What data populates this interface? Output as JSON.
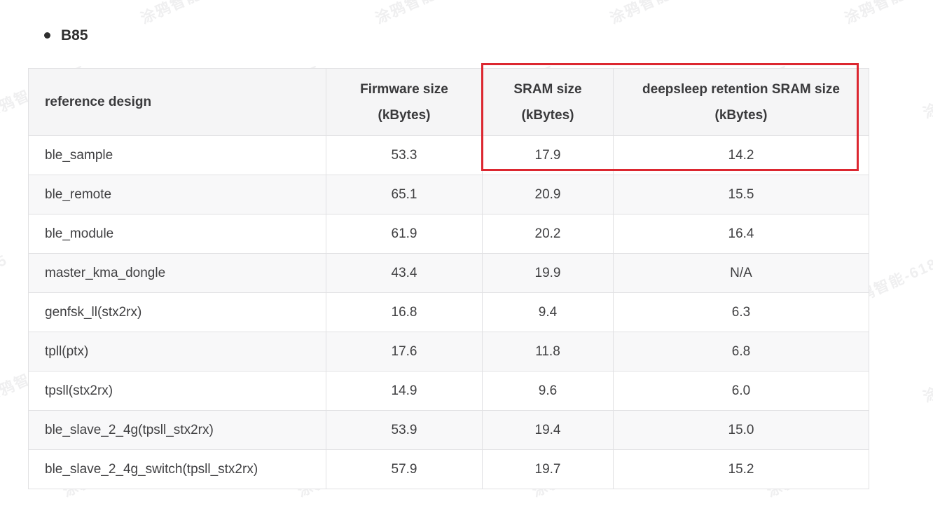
{
  "heading": {
    "title": "B85"
  },
  "table": {
    "headers": [
      "reference design",
      "Firmware size (kBytes)",
      "SRAM size (kBytes)",
      "deepsleep retention SRAM size (kBytes)"
    ],
    "rows": [
      [
        "ble_sample",
        "53.3",
        "17.9",
        "14.2"
      ],
      [
        "ble_remote",
        "65.1",
        "20.9",
        "15.5"
      ],
      [
        "ble_module",
        "61.9",
        "20.2",
        "16.4"
      ],
      [
        "master_kma_dongle",
        "43.4",
        "19.9",
        "N/A"
      ],
      [
        "genfsk_ll(stx2rx)",
        "16.8",
        "9.4",
        "6.3"
      ],
      [
        "tpll(ptx)",
        "17.6",
        "11.8",
        "6.8"
      ],
      [
        "tpsll(stx2rx)",
        "14.9",
        "9.6",
        "6.0"
      ],
      [
        "ble_slave_2_4g(tpsll_stx2rx)",
        "53.9",
        "19.4",
        "15.0"
      ],
      [
        "ble_slave_2_4g_switch(tpsll_stx2rx)",
        "57.9",
        "19.7",
        "15.2"
      ]
    ]
  },
  "highlight": {
    "color": "#dc2730",
    "covers_columns": [
      "SRAM size (kBytes)",
      "deepsleep retention SRAM size (kBytes)"
    ],
    "covers_row": "ble_sample"
  },
  "watermark": {
    "text": "涂鸦智能-6185"
  },
  "colors": {
    "header_bg": "#f5f5f6",
    "stripe_bg": "#f8f8f9",
    "border": "#e1e1e3",
    "text": "#3f3f41",
    "title_text": "#2f2f2f"
  }
}
